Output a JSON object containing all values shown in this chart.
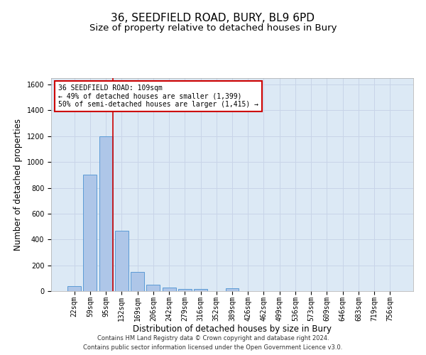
{
  "title": "36, SEEDFIELD ROAD, BURY, BL9 6PD",
  "subtitle": "Size of property relative to detached houses in Bury",
  "xlabel": "Distribution of detached houses by size in Bury",
  "ylabel": "Number of detached properties",
  "footer1": "Contains HM Land Registry data © Crown copyright and database right 2024.",
  "footer2": "Contains public sector information licensed under the Open Government Licence v3.0.",
  "bin_labels": [
    "22sqm",
    "59sqm",
    "95sqm",
    "132sqm",
    "169sqm",
    "206sqm",
    "242sqm",
    "279sqm",
    "316sqm",
    "352sqm",
    "389sqm",
    "426sqm",
    "462sqm",
    "499sqm",
    "536sqm",
    "573sqm",
    "609sqm",
    "646sqm",
    "683sqm",
    "719sqm",
    "756sqm"
  ],
  "bar_values": [
    40,
    900,
    1200,
    470,
    150,
    50,
    30,
    15,
    15,
    0,
    20,
    0,
    0,
    0,
    0,
    0,
    0,
    0,
    0,
    0,
    0
  ],
  "bar_color": "#aec6e8",
  "bar_edge_color": "#5b9bd5",
  "red_line_bin": 2,
  "red_line_color": "#cc0000",
  "annotation_line1": "36 SEEDFIELD ROAD: 109sqm",
  "annotation_line2": "← 49% of detached houses are smaller (1,399)",
  "annotation_line3": "50% of semi-detached houses are larger (1,415) →",
  "annotation_box_color": "#cc0000",
  "ylim": [
    0,
    1650
  ],
  "yticks": [
    0,
    200,
    400,
    600,
    800,
    1000,
    1200,
    1400,
    1600
  ],
  "grid_color": "#c8d4e8",
  "bg_color": "#dce9f5",
  "title_fontsize": 11,
  "subtitle_fontsize": 9.5,
  "ylabel_fontsize": 8.5,
  "xlabel_fontsize": 8.5,
  "tick_fontsize": 7,
  "annotation_fontsize": 7,
  "footer_fontsize": 6
}
